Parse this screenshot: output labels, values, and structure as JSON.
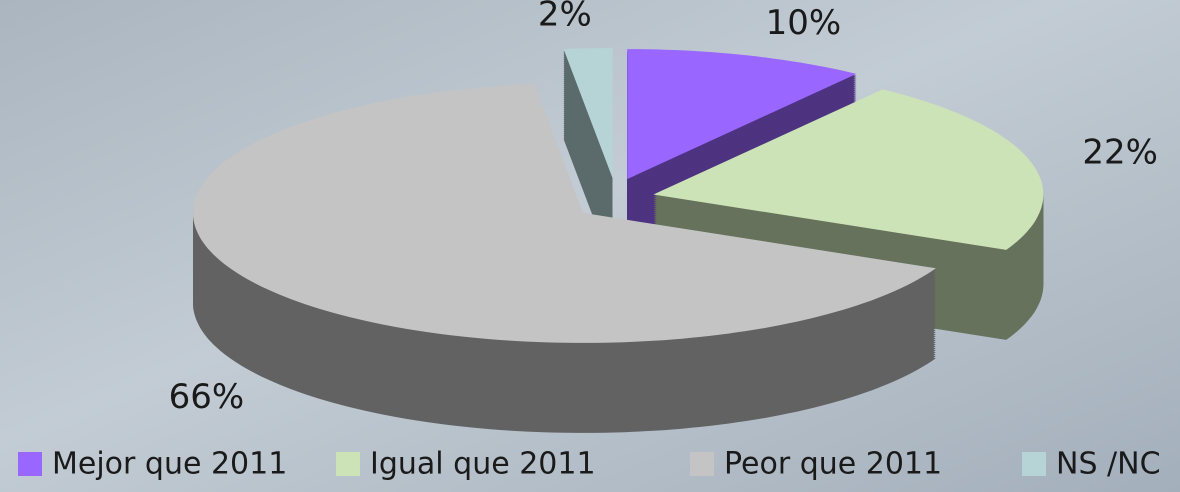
{
  "chart_data": {
    "type": "pie",
    "categories": [
      "Mejor que 2011",
      "Igual que 2011",
      "Peor que 2011",
      "NS /NC"
    ],
    "values": [
      10,
      22,
      66,
      2
    ],
    "value_labels": [
      "10%",
      "22%",
      "66%",
      "2%"
    ],
    "colors": [
      "#9966ff",
      "#cce3b8",
      "#c4c4c4",
      "#b6d3d6"
    ],
    "legend": "bottom"
  }
}
